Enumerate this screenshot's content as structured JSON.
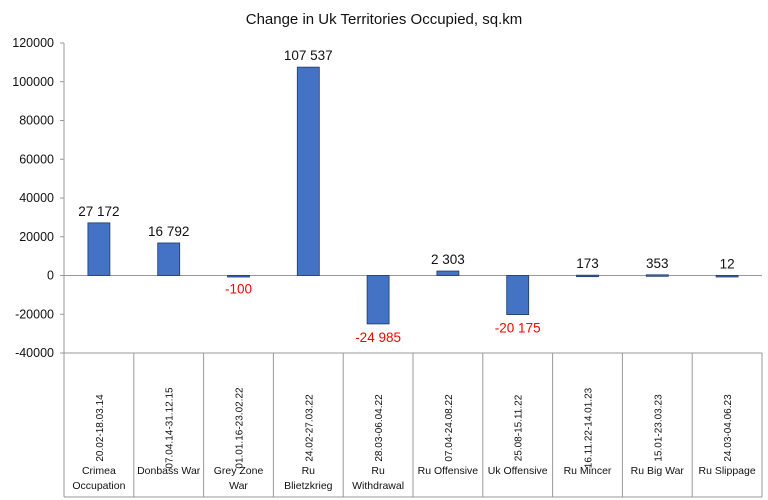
{
  "chart_data": {
    "type": "bar",
    "title": "Change in Uk Territories Occupied, sq.km",
    "xlabel": "",
    "ylabel": "",
    "ylim": [
      -40000,
      120000
    ],
    "yticks": [
      "120000",
      "100000",
      "80000",
      "60000",
      "40000",
      "20000",
      "0",
      "-20000",
      "-40000"
    ],
    "grid": false,
    "legend": "none",
    "categories": [
      {
        "dates": "20.02-18.03.14",
        "name": [
          "Crimea",
          "Occupation"
        ]
      },
      {
        "dates": "07.04.14-31.12.15",
        "name": [
          "Donbass War"
        ]
      },
      {
        "dates": "01.01.16-23.02.22",
        "name": [
          "Grey Zone",
          "War"
        ]
      },
      {
        "dates": "24.02-27.03.22",
        "name": [
          "Ru",
          "Blietzkrieg"
        ]
      },
      {
        "dates": "28.03-06.04.22",
        "name": [
          "Ru",
          "Withdrawal"
        ]
      },
      {
        "dates": "07.04-24.08.22",
        "name": [
          "Ru Offensive"
        ]
      },
      {
        "dates": "25.08-15.11.22",
        "name": [
          "Uk Offensive"
        ]
      },
      {
        "dates": "16.11.22-14.01.23",
        "name": [
          "Ru Mincer"
        ]
      },
      {
        "dates": "15.01-23.03.23",
        "name": [
          "Ru Big War"
        ]
      },
      {
        "dates": "24.03-04.06.23",
        "name": [
          "Ru Slippage"
        ]
      }
    ],
    "values": [
      27172,
      16792,
      -100,
      107537,
      -24985,
      2303,
      -20175,
      173,
      353,
      12
    ],
    "data_labels": [
      "27 172",
      "16 792",
      "-100",
      "107 537",
      "-24 985",
      "2 303",
      "-20 175",
      "173",
      "353",
      "12"
    ],
    "colors": {
      "bar": "#4472c4",
      "bar_edge": "#1f3864",
      "positive_label": "#111111",
      "negative_label": "#ff0000",
      "axis": "#999999"
    }
  }
}
